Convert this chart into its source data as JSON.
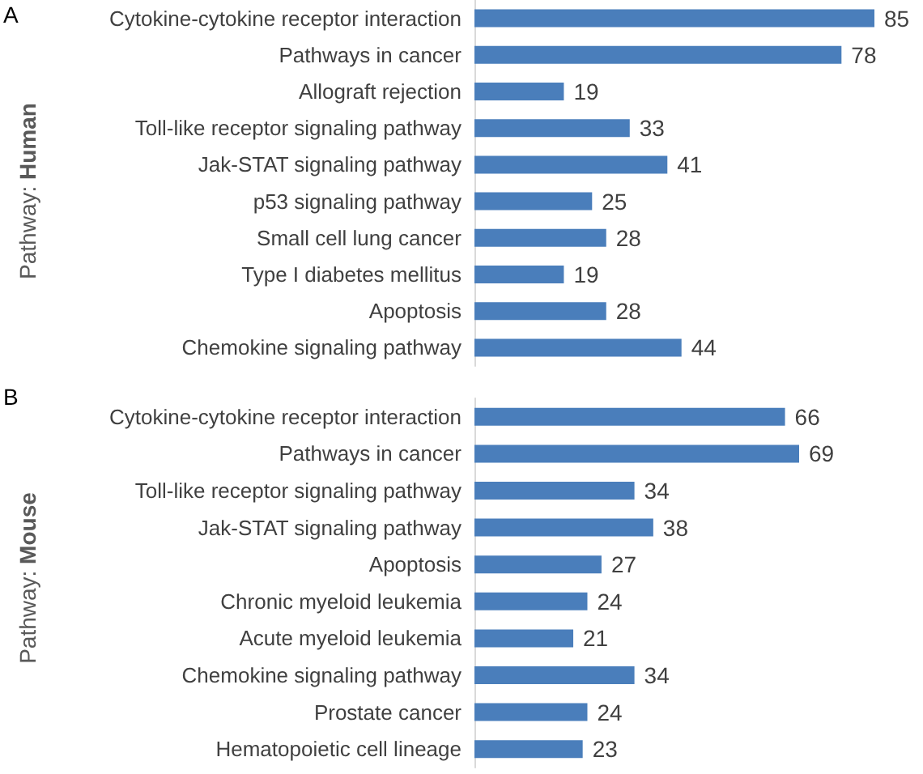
{
  "chart_data": [
    {
      "type": "bar",
      "orientation": "horizontal",
      "ylabel": "Pathway: Human",
      "annotations": [
        "A"
      ],
      "categories": [
        "Cytokine-cytokine receptor interaction",
        "Pathways in cancer",
        "Allograft rejection",
        "Toll-like receptor signaling pathway",
        "Jak-STAT signaling pathway",
        "p53 signaling pathway",
        "Small cell lung cancer",
        "Type I diabetes mellitus",
        "Apoptosis",
        "Chemokine signaling pathway"
      ],
      "values": [
        85,
        78,
        19,
        33,
        41,
        25,
        28,
        19,
        28,
        44
      ],
      "color": "#4a7ebb",
      "data_labels": true
    },
    {
      "type": "bar",
      "orientation": "horizontal",
      "ylabel": "Pathway: Mouse",
      "annotations": [
        "B"
      ],
      "categories": [
        "Cytokine-cytokine receptor interaction",
        "Pathways in cancer",
        "Toll-like receptor signaling pathway",
        "Jak-STAT signaling pathway",
        "Apoptosis",
        "Chronic myeloid leukemia",
        "Acute myeloid leukemia",
        "Chemokine signaling pathway",
        "Prostate cancer",
        "Hematopoietic cell lineage"
      ],
      "values": [
        66,
        69,
        34,
        38,
        27,
        24,
        21,
        34,
        24,
        23
      ],
      "color": "#4a7ebb",
      "data_labels": true
    }
  ]
}
